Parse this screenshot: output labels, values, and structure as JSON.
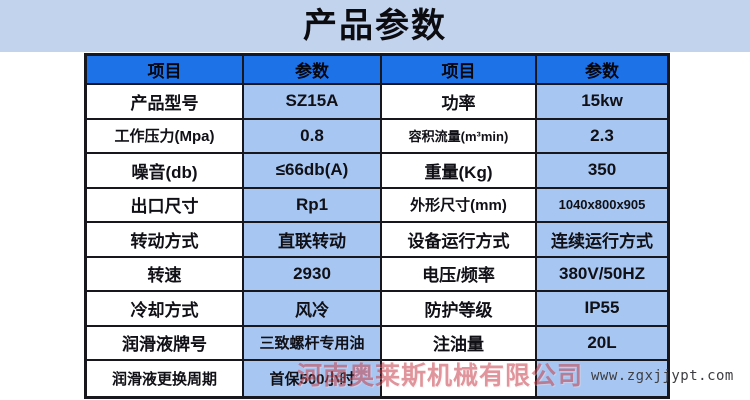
{
  "title": "产品参数",
  "table": {
    "header": {
      "item": "项目",
      "param": "参数"
    },
    "left_rows": [
      {
        "item": "产品型号",
        "value": "SZ15A"
      },
      {
        "item": "工作压力(Mpa)",
        "value": "0.8"
      },
      {
        "item": "噪音(db)",
        "value": "≤66db(A)"
      },
      {
        "item": "出口尺寸",
        "value": "Rp1"
      },
      {
        "item": "转动方式",
        "value": "直联转动"
      },
      {
        "item": "转速",
        "value": "2930"
      },
      {
        "item": "冷却方式",
        "value": "风冷"
      },
      {
        "item": "润滑液牌号",
        "value": "三致螺杆专用油"
      },
      {
        "item": "润滑液更换周期",
        "value": "首保500小时"
      }
    ],
    "right_rows": [
      {
        "item": "功率",
        "value": "15kw"
      },
      {
        "item": "容积流量(m³min)",
        "value": "2.3"
      },
      {
        "item": "重量(Kg)",
        "value": "350"
      },
      {
        "item": "外形尺寸(mm)",
        "value": "1040x800x905"
      },
      {
        "item": "设备运行方式",
        "value": "连续运行方式"
      },
      {
        "item": "电压/频率",
        "value": "380V/50HZ"
      },
      {
        "item": "防护等级",
        "value": "IP55"
      },
      {
        "item": "注油量",
        "value": "20L"
      },
      {
        "item": "",
        "value": ""
      }
    ]
  },
  "watermarks": {
    "company": "河南奥莱斯机械有限公司",
    "url": "www.zgxjjypt.com"
  },
  "colors": {
    "banner_bg": "#c2d3ee",
    "header_bg": "#1d72e8",
    "param_bg": "#a7c7f2",
    "border": "#17171d",
    "watermark_red": "#c6404a"
  }
}
